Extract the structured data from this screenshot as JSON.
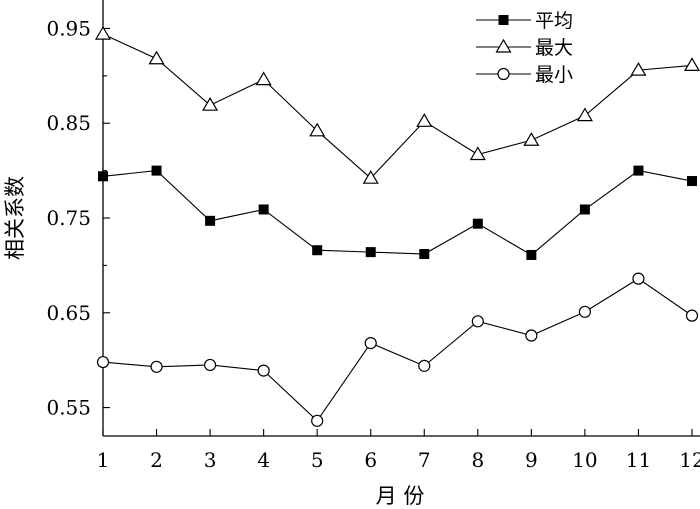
{
  "chart_data": {
    "type": "line",
    "x": [
      1,
      2,
      3,
      4,
      5,
      6,
      7,
      8,
      9,
      10,
      11,
      12
    ],
    "xlabel": "月 份",
    "ylabel": "相关系数",
    "xlim": [
      1,
      12
    ],
    "ylim": [
      0.52,
      0.98
    ],
    "yticks": [
      0.55,
      0.65,
      0.75,
      0.85,
      0.95
    ],
    "ytick_labels": [
      "0.55",
      "0.65",
      "0.75",
      "0.85",
      "0.95"
    ],
    "xtick_labels": [
      "1",
      "2",
      "3",
      "4",
      "5",
      "6",
      "7",
      "8",
      "9",
      "10",
      "11",
      "12"
    ],
    "grid": false,
    "legend_position": "top-right",
    "series": [
      {
        "name": "平均",
        "marker": "filled-square",
        "values": [
          0.794,
          0.8,
          0.747,
          0.759,
          0.716,
          0.714,
          0.712,
          0.744,
          0.711,
          0.759,
          0.8,
          0.789
        ]
      },
      {
        "name": "最大",
        "marker": "open-triangle",
        "values": [
          0.944,
          0.918,
          0.869,
          0.896,
          0.842,
          0.792,
          0.852,
          0.817,
          0.832,
          0.858,
          0.906,
          0.911
        ]
      },
      {
        "name": "最小",
        "marker": "open-circle",
        "values": [
          0.598,
          0.593,
          0.595,
          0.589,
          0.536,
          0.618,
          0.594,
          0.641,
          0.626,
          0.651,
          0.686,
          0.647
        ]
      }
    ]
  }
}
